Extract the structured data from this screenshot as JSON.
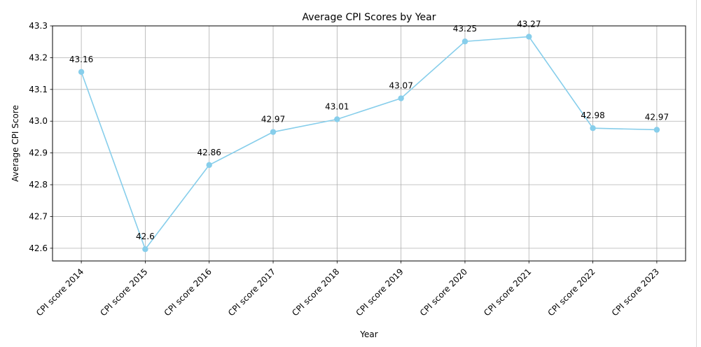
{
  "chart_data": {
    "type": "line",
    "title": "Average CPI Scores by Year",
    "xlabel": "Year",
    "ylabel": "Average CPI Score",
    "categories": [
      "CPI score 2014",
      "CPI score 2015",
      "CPI score 2016",
      "CPI score 2017",
      "CPI score 2018",
      "CPI score 2019",
      "CPI score 2020",
      "CPI score 2021",
      "CPI score 2022",
      "CPI score 2023"
    ],
    "series": [
      {
        "values": [
          43.155,
          42.597,
          42.862,
          42.966,
          43.006,
          43.072,
          43.251,
          43.266,
          42.978,
          42.973
        ],
        "data_labels": [
          "43.16",
          "42.6",
          "42.86",
          "42.97",
          "43.01",
          "43.07",
          "43.25",
          "43.27",
          "42.98",
          "42.97"
        ]
      }
    ],
    "ylim": [
      42.56,
      43.3
    ],
    "yticks": [
      42.6,
      42.7,
      42.8,
      42.9,
      43.0,
      43.1,
      43.2,
      43.3
    ],
    "ytick_labels": [
      "42.6",
      "42.7",
      "42.8",
      "42.9",
      "43.0",
      "43.1",
      "43.2",
      "43.3"
    ],
    "grid": true,
    "legend": "none",
    "colors": {
      "line": "#87ceeb",
      "marker": "#87ceeb",
      "grid": "#b0b0b0",
      "axes": "#000000"
    }
  }
}
